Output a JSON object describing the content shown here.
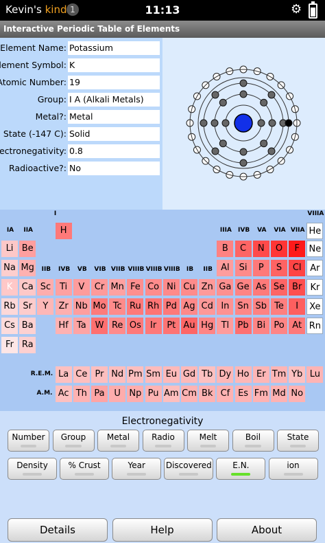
{
  "status_bar": {
    "owner_name": "Kevin's",
    "owner_brand": "kindle",
    "notification_count": "1",
    "time": "11:13"
  },
  "app_title": "Interactive Periodic Table of Elements",
  "fields": [
    {
      "label": "Element Name:",
      "value": "Potassium"
    },
    {
      "label": "Element Symbol:",
      "value": "K"
    },
    {
      "label": "Atomic Number:",
      "value": "19"
    },
    {
      "label": "Group:",
      "value": "I A (Alkali Metals)"
    },
    {
      "label": "Metal?:",
      "value": "Metal"
    },
    {
      "label": "State (-147 C):",
      "value": "Solid"
    },
    {
      "label": "Electronegativity:",
      "value": "0.8"
    },
    {
      "label": "Radioactive?:",
      "value": "No"
    }
  ],
  "atom_shells": [
    2,
    8,
    8,
    1
  ],
  "group_labels": [
    "I",
    "VIIIA",
    "IA",
    "IIA",
    "IIIA",
    "IVB",
    "VA",
    "VIA",
    "VIIA",
    "IIB",
    "IVB",
    "VB",
    "VIB",
    "VIIB",
    "VIIIB",
    "VIIIB",
    "VIIIB",
    "IB",
    "IIB"
  ],
  "series_labels": {
    "rem": "R.E.M.",
    "am": "A.M."
  },
  "selected_symbol": "K",
  "elements": [
    {
      "s": "H",
      "en": 2.2
    },
    {
      "s": "He",
      "en": null
    },
    {
      "s": "Li",
      "en": 1.0
    },
    {
      "s": "Be",
      "en": 1.57
    },
    {
      "s": "B",
      "en": 2.04
    },
    {
      "s": "C",
      "en": 2.55
    },
    {
      "s": "N",
      "en": 3.04
    },
    {
      "s": "O",
      "en": 3.44
    },
    {
      "s": "F",
      "en": 3.98
    },
    {
      "s": "Ne",
      "en": null
    },
    {
      "s": "Na",
      "en": 0.93
    },
    {
      "s": "Mg",
      "en": 1.31
    },
    {
      "s": "Al",
      "en": 1.61
    },
    {
      "s": "Si",
      "en": 1.9
    },
    {
      "s": "P",
      "en": 2.19
    },
    {
      "s": "S",
      "en": 2.58
    },
    {
      "s": "Cl",
      "en": 3.16
    },
    {
      "s": "Ar",
      "en": null
    },
    {
      "s": "K",
      "en": 0.82
    },
    {
      "s": "Ca",
      "en": 1.0
    },
    {
      "s": "Sc",
      "en": 1.36
    },
    {
      "s": "Ti",
      "en": 1.54
    },
    {
      "s": "V",
      "en": 1.63
    },
    {
      "s": "Cr",
      "en": 1.66
    },
    {
      "s": "Mn",
      "en": 1.55
    },
    {
      "s": "Fe",
      "en": 1.83
    },
    {
      "s": "Co",
      "en": 1.88
    },
    {
      "s": "Ni",
      "en": 1.91
    },
    {
      "s": "Cu",
      "en": 1.9
    },
    {
      "s": "Zn",
      "en": 1.65
    },
    {
      "s": "Ga",
      "en": 1.81
    },
    {
      "s": "Ge",
      "en": 2.01
    },
    {
      "s": "As",
      "en": 2.18
    },
    {
      "s": "Se",
      "en": 2.55
    },
    {
      "s": "Br",
      "en": 2.96
    },
    {
      "s": "Kr",
      "en": null
    },
    {
      "s": "Rb",
      "en": 0.82
    },
    {
      "s": "Sr",
      "en": 0.95
    },
    {
      "s": "Y",
      "en": 1.22
    },
    {
      "s": "Zr",
      "en": 1.33
    },
    {
      "s": "Nb",
      "en": 1.6
    },
    {
      "s": "Mo",
      "en": 2.16
    },
    {
      "s": "Tc",
      "en": 1.9
    },
    {
      "s": "Ru",
      "en": 2.2
    },
    {
      "s": "Rh",
      "en": 2.28
    },
    {
      "s": "Pd",
      "en": 2.2
    },
    {
      "s": "Ag",
      "en": 1.93
    },
    {
      "s": "Cd",
      "en": 1.69
    },
    {
      "s": "In",
      "en": 1.78
    },
    {
      "s": "Sn",
      "en": 1.96
    },
    {
      "s": "Sb",
      "en": 2.05
    },
    {
      "s": "Te",
      "en": 2.1
    },
    {
      "s": "I",
      "en": 2.66
    },
    {
      "s": "Xe",
      "en": null
    },
    {
      "s": "Cs",
      "en": 0.79
    },
    {
      "s": "Ba",
      "en": 0.89
    },
    {
      "s": "Hf",
      "en": 1.3
    },
    {
      "s": "Ta",
      "en": 1.5
    },
    {
      "s": "W",
      "en": 2.36
    },
    {
      "s": "Re",
      "en": 1.9
    },
    {
      "s": "Os",
      "en": 2.2
    },
    {
      "s": "Ir",
      "en": 2.2
    },
    {
      "s": "Pt",
      "en": 2.28
    },
    {
      "s": "Au",
      "en": 2.54
    },
    {
      "s": "Hg",
      "en": 2.0
    },
    {
      "s": "Tl",
      "en": 1.62
    },
    {
      "s": "Pb",
      "en": 2.33
    },
    {
      "s": "Bi",
      "en": 2.02
    },
    {
      "s": "Po",
      "en": 2.0
    },
    {
      "s": "At",
      "en": 2.2
    },
    {
      "s": "Rn",
      "en": null
    },
    {
      "s": "Fr",
      "en": 0.7
    },
    {
      "s": "Ra",
      "en": 0.9
    },
    {
      "s": "La",
      "en": 1.1
    },
    {
      "s": "Ce",
      "en": 1.12
    },
    {
      "s": "Pr",
      "en": 1.13
    },
    {
      "s": "Nd",
      "en": 1.14
    },
    {
      "s": "Pm",
      "en": 1.13
    },
    {
      "s": "Sm",
      "en": 1.17
    },
    {
      "s": "Eu",
      "en": 1.2
    },
    {
      "s": "Gd",
      "en": 1.2
    },
    {
      "s": "Tb",
      "en": 1.1
    },
    {
      "s": "Dy",
      "en": 1.22
    },
    {
      "s": "Ho",
      "en": 1.23
    },
    {
      "s": "Er",
      "en": 1.24
    },
    {
      "s": "Tm",
      "en": 1.25
    },
    {
      "s": "Yb",
      "en": 1.1
    },
    {
      "s": "Lu",
      "en": 1.27
    },
    {
      "s": "Ac",
      "en": 1.1
    },
    {
      "s": "Th",
      "en": 1.3
    },
    {
      "s": "Pa",
      "en": 1.5
    },
    {
      "s": "U",
      "en": 1.38
    },
    {
      "s": "Np",
      "en": 1.36
    },
    {
      "s": "Pu",
      "en": 1.28
    },
    {
      "s": "Am",
      "en": 1.13
    },
    {
      "s": "Cm",
      "en": 1.28
    },
    {
      "s": "Bk",
      "en": 1.3
    },
    {
      "s": "Cf",
      "en": 1.3
    },
    {
      "s": "Es",
      "en": 1.3
    },
    {
      "s": "Fm",
      "en": 1.3
    },
    {
      "s": "Md",
      "en": 1.3
    },
    {
      "s": "No",
      "en": 1.3
    }
  ],
  "colors": {
    "nonreactive": "#ffffff",
    "scale_low": "#fde6e6",
    "scale_high": "#ff1a1a",
    "selected": "#ffc8c8"
  },
  "legend_caption": "Electronegativity",
  "property_buttons_row1": [
    "Number",
    "Group",
    "Metal",
    "Radio",
    "Melt",
    "Boil",
    "State"
  ],
  "property_buttons_row2": [
    "Density",
    "% Crust",
    "Year",
    "Discovered",
    "E.N.",
    "ion"
  ],
  "active_property": "E.N.",
  "bottom_buttons": [
    "Details",
    "Help",
    "About"
  ]
}
